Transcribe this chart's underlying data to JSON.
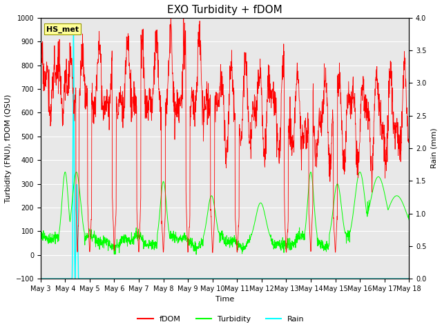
{
  "title": "EXO Turbidity + fDOM",
  "ylabel_left": "Turbidity (FNU), fDOM (QSU)",
  "ylabel_right": "Rain (mm)",
  "xlabel": "Time",
  "ylim_left": [
    -100,
    1000
  ],
  "ylim_right": [
    0.0,
    4.0
  ],
  "xlim": [
    0,
    360
  ],
  "yticks_left": [
    -100,
    0,
    100,
    200,
    300,
    400,
    500,
    600,
    700,
    800,
    900,
    1000
  ],
  "yticks_right": [
    0.0,
    0.5,
    1.0,
    1.5,
    2.0,
    2.5,
    3.0,
    3.5,
    4.0
  ],
  "xtick_labels": [
    "May 3",
    "May 4",
    "May 5",
    "May 6",
    "May 7",
    "May 8",
    "May 9",
    "May 10",
    "May 11",
    "May 12",
    "May 13",
    "May 14",
    "May 15",
    "May 16",
    "May 17",
    "May 18"
  ],
  "xtick_positions": [
    0,
    24,
    48,
    72,
    96,
    120,
    144,
    168,
    192,
    216,
    240,
    264,
    288,
    312,
    336,
    360
  ],
  "fdom_color": "#FF0000",
  "turbidity_color": "#00FF00",
  "rain_color": "#00FFFF",
  "bg_color": "#E8E8E8",
  "label_box_color": "#FFFF99",
  "label_box_text": "HS_met",
  "legend_labels": [
    "fDOM",
    "Turbidity",
    "Rain"
  ],
  "grid_color": "#FFFFFF",
  "title_fontsize": 11,
  "axis_fontsize": 8,
  "tick_fontsize": 7,
  "legend_fontsize": 8
}
